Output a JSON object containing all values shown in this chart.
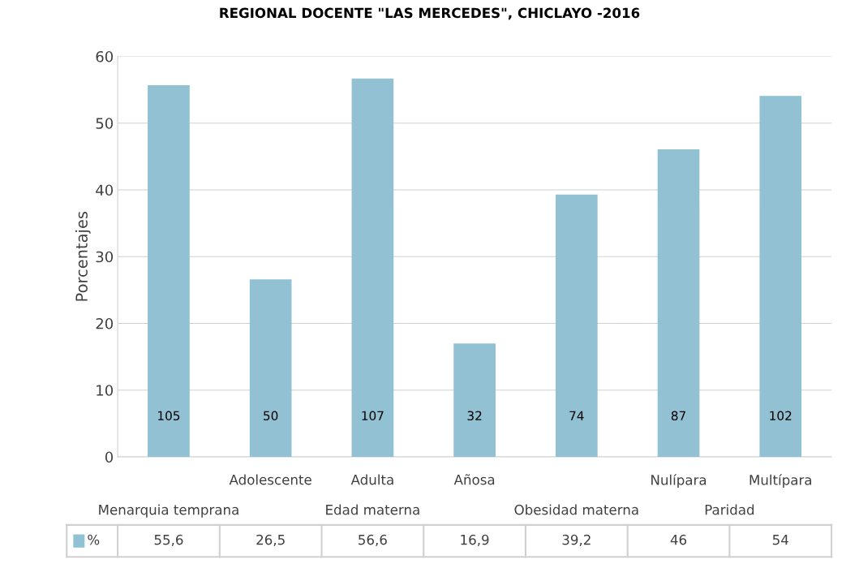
{
  "chart_data": {
    "type": "bar",
    "title": "REGIONAL DOCENTE \"LAS MERCEDES\", CHICLAYO -2016",
    "ylabel": "Porcentajes",
    "categories": [
      null,
      "Adolescente",
      "Adulta",
      "Añosa",
      null,
      "Nulípara",
      "Multípara"
    ],
    "series": [
      {
        "name": "%",
        "color": "#92c1d3",
        "values": [
          55.6,
          26.5,
          56.6,
          16.9,
          39.2,
          46,
          54
        ],
        "value_labels": [
          "55,6",
          "26,5",
          "56,6",
          "16,9",
          "39,2",
          "46",
          "54"
        ]
      }
    ],
    "annotations": [
      "105",
      "50",
      "107",
      "32",
      "74",
      "87",
      "102",
      "Menarquia temprana",
      "Edad materna",
      "Obesidad materna",
      "Paridad"
    ],
    "ylim": [
      0,
      60
    ],
    "yticks": [
      0,
      10,
      20,
      30,
      40,
      50,
      60
    ],
    "grid": "y",
    "legend": "bottom"
  }
}
